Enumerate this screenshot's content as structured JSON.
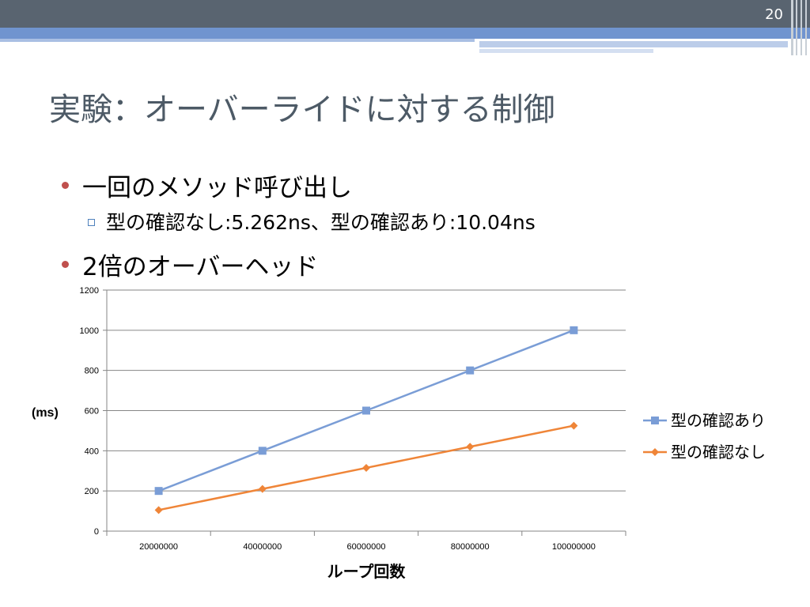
{
  "slide": {
    "page_number": "20",
    "title": "実験：オーバーライドに対する制御"
  },
  "bullets": {
    "item1": "一回のメソッド呼び出し",
    "item1_sub": "型の確認なし:5.262ns、型の確認あり:10.04ns",
    "item2": "2倍のオーバーヘッド"
  },
  "colors": {
    "header_dark": "#596470",
    "header_blue": "#7094cf",
    "series_with_check": "#7a9dd6",
    "series_without_check": "#ef8538",
    "bullet": "#c0504d"
  },
  "chart_data": {
    "type": "line",
    "xlabel": "ループ回数",
    "ylabel": "(ms)",
    "categories": [
      "20000000",
      "40000000",
      "60000000",
      "80000000",
      "100000000"
    ],
    "ylim": [
      0,
      1200
    ],
    "yticks": [
      0,
      200,
      400,
      600,
      800,
      1000,
      1200
    ],
    "grid": true,
    "legend_position": "right",
    "series": [
      {
        "name": "型の確認あり",
        "marker": "square",
        "color": "#7a9dd6",
        "values": [
          200,
          400,
          600,
          800,
          1000
        ]
      },
      {
        "name": "型の確認なし",
        "marker": "diamond",
        "color": "#ef8538",
        "values": [
          105,
          210,
          315,
          420,
          525
        ]
      }
    ]
  }
}
